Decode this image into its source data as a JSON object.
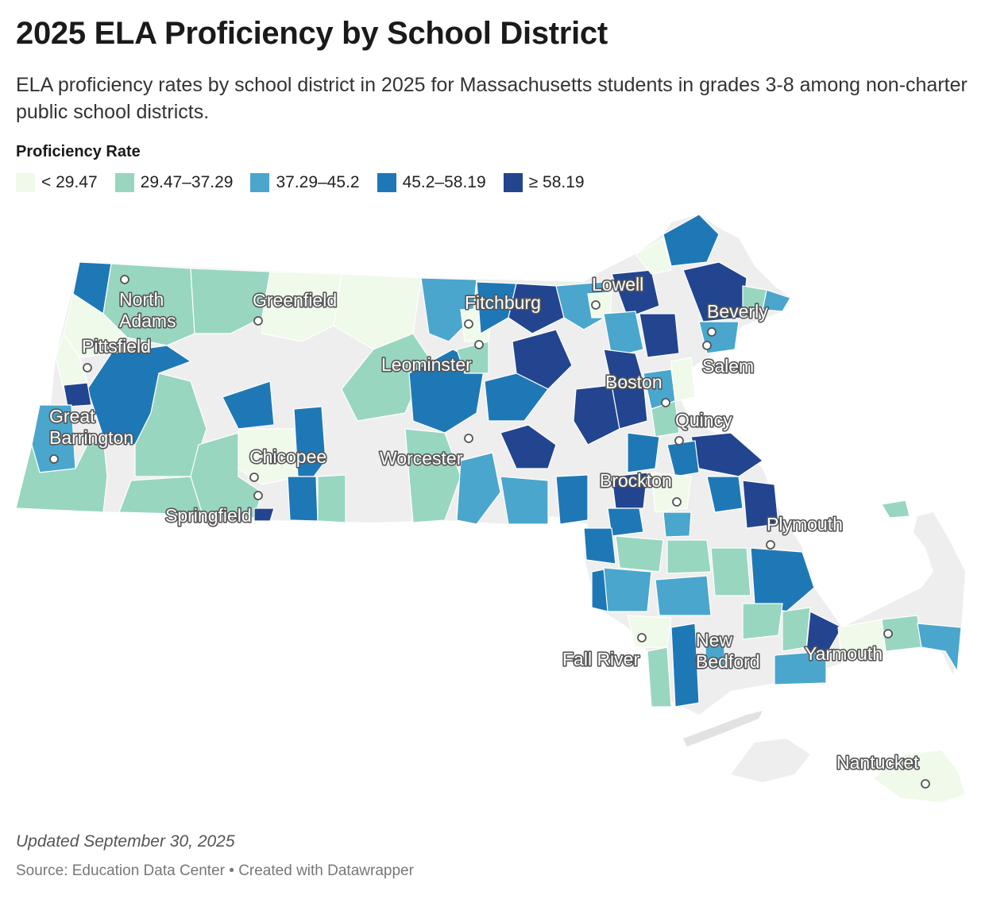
{
  "title": "2025 ELA Proficiency by School District",
  "subtitle": "ELA proficiency rates by school district in 2025 for Massachusetts students in grades 3-8 among non-charter public school districts.",
  "legend": {
    "title": "Proficiency Rate",
    "bins": [
      {
        "label": "< 29.47",
        "color": "#effaea"
      },
      {
        "label": "29.47–37.29",
        "color": "#98d6c0"
      },
      {
        "label": "37.29–45.2",
        "color": "#4aa6cc"
      },
      {
        "label": "45.2–58.19",
        "color": "#1f78b6"
      },
      {
        "label": "≥ 58.19",
        "color": "#23458f"
      }
    ],
    "nodata_color": "#eeeeee"
  },
  "cities": [
    {
      "name": "North Adams"
    },
    {
      "name": "Greenfield"
    },
    {
      "name": "Pittsfield"
    },
    {
      "name": "Great Barrington"
    },
    {
      "name": "Chicopee"
    },
    {
      "name": "Springfield"
    },
    {
      "name": "Fitchburg"
    },
    {
      "name": "Leominster"
    },
    {
      "name": "Worcester"
    },
    {
      "name": "Lowell"
    },
    {
      "name": "Beverly"
    },
    {
      "name": "Salem"
    },
    {
      "name": "Boston"
    },
    {
      "name": "Quincy"
    },
    {
      "name": "Brockton"
    },
    {
      "name": "Plymouth"
    },
    {
      "name": "New Bedford"
    },
    {
      "name": "Fall River"
    },
    {
      "name": "Yarmouth"
    },
    {
      "name": "Nantucket"
    }
  ],
  "footer": {
    "updated": "Updated September 30, 2025",
    "source": "Source: Education Data Center • Created with Datawrapper"
  }
}
